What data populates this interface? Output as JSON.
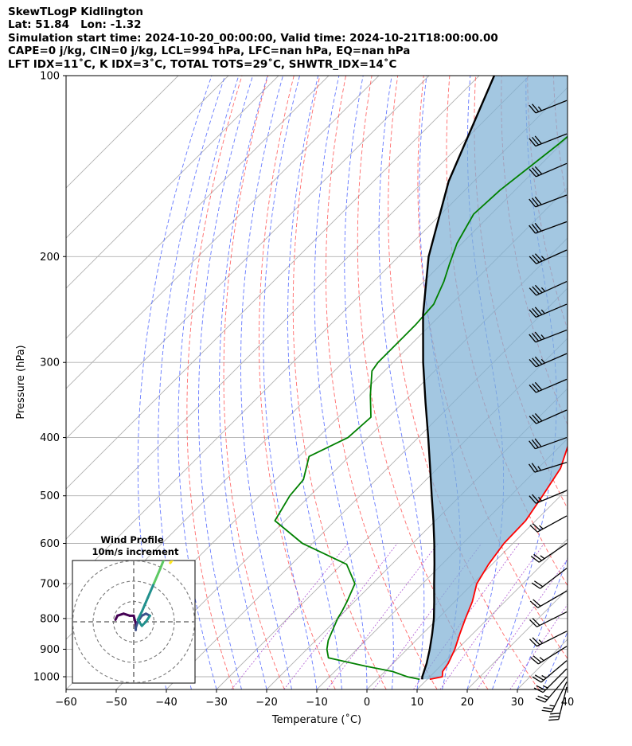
{
  "header": {
    "line1": "SkewTLogP Kidlington",
    "line2": "Lat: 51.84   Lon: -1.32",
    "line3": "Simulation start time: 2024-10-20_00:00:00, Valid time: 2024-10-21T18:00:00.00",
    "line4": "CAPE=0 j/kg, CIN=0 j/kg, LCL=994 hPa, LFC=nan hPa, EQ=nan hPa",
    "line5": "LFT IDX=11˚C, K IDX=3˚C, TOTAL TOTS=29˚C, SHWTR_IDX=14˚C"
  },
  "chart_data": [
    {
      "type": "line",
      "subtype": "skew-t log-p",
      "xlabel": "Temperature (˚C)",
      "ylabel": "Pressure (hPa)",
      "xlim": [
        -60,
        40
      ],
      "ylim": [
        1050,
        100
      ],
      "y_scale": "log",
      "x_ticks": [
        -60,
        -50,
        -40,
        -30,
        -20,
        -10,
        0,
        10,
        20,
        30,
        40
      ],
      "y_ticks": [
        1000,
        900,
        800,
        700,
        600,
        500,
        400,
        300,
        200,
        100
      ],
      "grid": true,
      "series": [
        {
          "role": "temperature",
          "color": "#ff0000",
          "points": [
            [
              1010,
              10.5
            ],
            [
              1000,
              12.5
            ],
            [
              980,
              11.5
            ],
            [
              950,
              11.0
            ],
            [
              900,
              9.5
            ],
            [
              850,
              7.5
            ],
            [
              800,
              5.5
            ],
            [
              750,
              3.5
            ],
            [
              700,
              0.8
            ],
            [
              650,
              -0.7
            ],
            [
              600,
              -1.8
            ],
            [
              550,
              -2.0
            ],
            [
              500,
              -3.6
            ],
            [
              450,
              -5.5
            ],
            [
              400,
              -9.6
            ],
            [
              350,
              -14.5
            ],
            [
              330,
              -15.6
            ],
            [
              300,
              -17.5
            ],
            [
              270,
              -20.5
            ],
            [
              240,
              -24.5
            ],
            [
              215,
              -28.5
            ],
            [
              200,
              -31.0
            ],
            [
              180,
              -34.5
            ],
            [
              160,
              -37.5
            ],
            [
              140,
              -39.0
            ],
            [
              125,
              -41.0
            ],
            [
              115,
              -42.5
            ],
            [
              100,
              -45.0
            ]
          ]
        },
        {
          "role": "dewpoint",
          "color": "#008000",
          "points": [
            [
              1010,
              8.5
            ],
            [
              1000,
              5.5
            ],
            [
              980,
              1.5
            ],
            [
              960,
              -5.0
            ],
            [
              930,
              -14.0
            ],
            [
              900,
              -16.0
            ],
            [
              870,
              -17.5
            ],
            [
              800,
              -20.0
            ],
            [
              780,
              -20.5
            ],
            [
              750,
              -21.5
            ],
            [
              700,
              -23.5
            ],
            [
              650,
              -29.0
            ],
            [
              600,
              -42.0
            ],
            [
              550,
              -52.0
            ],
            [
              500,
              -54.0
            ],
            [
              470,
              -54.5
            ],
            [
              430,
              -58.0
            ],
            [
              400,
              -54.0
            ],
            [
              370,
              -53.5
            ],
            [
              340,
              -58.0
            ],
            [
              310,
              -62.5
            ],
            [
              300,
              -63.0
            ],
            [
              260,
              -63.0
            ],
            [
              240,
              -63.5
            ],
            [
              220,
              -66.0
            ],
            [
              205,
              -68.5
            ],
            [
              190,
              -71.0
            ],
            [
              170,
              -73.5
            ],
            [
              155,
              -73.0
            ],
            [
              130,
              -70.5
            ],
            [
              100,
              -68.0
            ]
          ]
        },
        {
          "role": "parcel profile",
          "color": "#000000",
          "points": [
            [
              1010,
              9.0
            ],
            [
              1000,
              8.5
            ],
            [
              950,
              6.7
            ],
            [
              900,
              4.5
            ],
            [
              850,
              2.0
            ],
            [
              800,
              -0.8
            ],
            [
              750,
              -4.1
            ],
            [
              700,
              -7.7
            ],
            [
              650,
              -11.5
            ],
            [
              600,
              -15.7
            ],
            [
              550,
              -20.4
            ],
            [
              500,
              -25.7
            ],
            [
              450,
              -31.5
            ],
            [
              400,
              -38.0
            ],
            [
              350,
              -45.5
            ],
            [
              300,
              -54.0
            ],
            [
              250,
              -63.5
            ],
            [
              200,
              -74.0
            ],
            [
              150,
              -85.0
            ],
            [
              100,
              -97.0
            ]
          ]
        }
      ],
      "shaded_region": {
        "between": [
          "temperature",
          "parcel profile"
        ],
        "color": "#7fb1d6"
      },
      "wind_barbs_speed_kt": [
        {
          "p": 1040,
          "u": 7,
          "v": 28
        },
        {
          "p": 1020,
          "u": 12,
          "v": 24
        },
        {
          "p": 1000,
          "u": 17,
          "v": 20
        },
        {
          "p": 970,
          "u": 19,
          "v": 19
        },
        {
          "p": 940,
          "u": 20,
          "v": 17
        },
        {
          "p": 890,
          "u": 21,
          "v": 13
        },
        {
          "p": 840,
          "u": 22,
          "v": 11
        },
        {
          "p": 780,
          "u": 20,
          "v": 10
        },
        {
          "p": 720,
          "u": 19,
          "v": 11
        },
        {
          "p": 660,
          "u": 17,
          "v": 13
        },
        {
          "p": 600,
          "u": 19,
          "v": 13
        },
        {
          "p": 540,
          "u": 20,
          "v": 11
        },
        {
          "p": 490,
          "u": 24,
          "v": 10
        },
        {
          "p": 440,
          "u": 26,
          "v": 8
        },
        {
          "p": 400,
          "u": 28,
          "v": 10
        },
        {
          "p": 360,
          "u": 27,
          "v": 12
        },
        {
          "p": 320,
          "u": 28,
          "v": 12
        },
        {
          "p": 290,
          "u": 30,
          "v": 13
        },
        {
          "p": 265,
          "u": 31,
          "v": 12
        },
        {
          "p": 240,
          "u": 33,
          "v": 14
        },
        {
          "p": 220,
          "u": 33,
          "v": 15
        },
        {
          "p": 195,
          "u": 31,
          "v": 14
        },
        {
          "p": 175,
          "u": 30,
          "v": 11
        },
        {
          "p": 158,
          "u": 29,
          "v": 11
        },
        {
          "p": 140,
          "u": 28,
          "v": 12
        },
        {
          "p": 125,
          "u": 28,
          "v": 11
        },
        {
          "p": 110,
          "u": 25,
          "v": 10
        }
      ]
    },
    {
      "type": "line",
      "subtype": "hodograph",
      "title": "Wind Profile",
      "subtitle": "10m/s increment",
      "ring_step": 10,
      "rings": 3,
      "trace_colors": [
        "#440154",
        "#3b528b",
        "#21908d",
        "#5dc963",
        "#fde725"
      ],
      "points_ms": [
        [
          -9,
          1
        ],
        [
          -8,
          3
        ],
        [
          -5,
          4
        ],
        [
          -2,
          3
        ],
        [
          0,
          3
        ],
        [
          1,
          -1
        ],
        [
          1,
          -4
        ],
        [
          1,
          -3
        ],
        [
          2,
          0
        ],
        [
          4,
          3
        ],
        [
          6,
          4
        ],
        [
          8,
          3
        ],
        [
          6,
          0
        ],
        [
          4,
          -2
        ],
        [
          2,
          1
        ],
        [
          4,
          5
        ],
        [
          7,
          12
        ],
        [
          10,
          19
        ],
        [
          13,
          26
        ],
        [
          15,
          31
        ],
        [
          18,
          37
        ],
        [
          20,
          40
        ],
        [
          22,
          37
        ],
        [
          21,
          33
        ],
        [
          18,
          29
        ],
        [
          22,
          35
        ],
        [
          24,
          39
        ],
        [
          26,
          42
        ]
      ]
    }
  ]
}
